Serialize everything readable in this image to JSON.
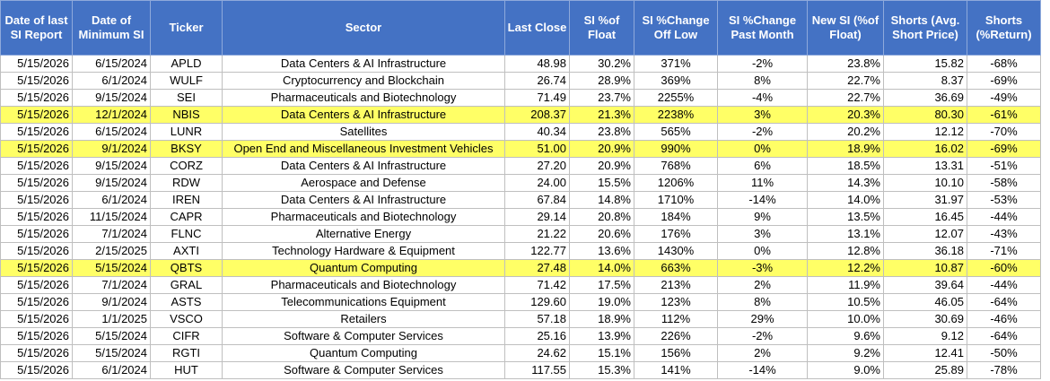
{
  "headers": [
    "Date of last SI Report",
    "Date of Minimum SI",
    "Ticker",
    "Sector",
    "Last Close",
    "SI %of Float",
    "SI %Change Off Low",
    "SI %Change Past Month",
    "New SI (%of Float)",
    "Shorts (Avg. Short Price)",
    "Shorts (%Return)"
  ],
  "highlight_color": "#ffff66",
  "header_color": "#4472c4",
  "rows": [
    {
      "report": "5/15/2026",
      "min": "6/15/2024",
      "ticker": "APLD",
      "sector": "Data Centers & AI Infrastructure",
      "close": "48.98",
      "si": "30.2%",
      "off_low": "371%",
      "past_month": "-2%",
      "new_si": "23.8%",
      "avg_price": "15.82",
      "ret": "-68%",
      "highlight": false
    },
    {
      "report": "5/15/2026",
      "min": "6/1/2024",
      "ticker": "WULF",
      "sector": "Cryptocurrency and Blockchain",
      "close": "26.74",
      "si": "28.9%",
      "off_low": "369%",
      "past_month": "8%",
      "new_si": "22.7%",
      "avg_price": "8.37",
      "ret": "-69%",
      "highlight": false
    },
    {
      "report": "5/15/2026",
      "min": "9/15/2024",
      "ticker": "SEI",
      "sector": "Pharmaceuticals and Biotechnology",
      "close": "71.49",
      "si": "23.7%",
      "off_low": "2255%",
      "past_month": "-4%",
      "new_si": "22.7%",
      "avg_price": "36.69",
      "ret": "-49%",
      "highlight": false
    },
    {
      "report": "5/15/2026",
      "min": "12/1/2024",
      "ticker": "NBIS",
      "sector": "Data Centers & AI Infrastructure",
      "close": "208.37",
      "si": "21.3%",
      "off_low": "2238%",
      "past_month": "3%",
      "new_si": "20.3%",
      "avg_price": "80.30",
      "ret": "-61%",
      "highlight": true
    },
    {
      "report": "5/15/2026",
      "min": "6/15/2024",
      "ticker": "LUNR",
      "sector": "Satellites",
      "close": "40.34",
      "si": "23.8%",
      "off_low": "565%",
      "past_month": "-2%",
      "new_si": "20.2%",
      "avg_price": "12.12",
      "ret": "-70%",
      "highlight": false
    },
    {
      "report": "5/15/2026",
      "min": "9/1/2024",
      "ticker": "BKSY",
      "sector": "Open End and Miscellaneous Investment Vehicles",
      "close": "51.00",
      "si": "20.9%",
      "off_low": "990%",
      "past_month": "0%",
      "new_si": "18.9%",
      "avg_price": "16.02",
      "ret": "-69%",
      "highlight": true
    },
    {
      "report": "5/15/2026",
      "min": "9/15/2024",
      "ticker": "CORZ",
      "sector": "Data Centers & AI Infrastructure",
      "close": "27.20",
      "si": "20.9%",
      "off_low": "768%",
      "past_month": "6%",
      "new_si": "18.5%",
      "avg_price": "13.31",
      "ret": "-51%",
      "highlight": false
    },
    {
      "report": "5/15/2026",
      "min": "9/15/2024",
      "ticker": "RDW",
      "sector": "Aerospace and Defense",
      "close": "24.00",
      "si": "15.5%",
      "off_low": "1206%",
      "past_month": "11%",
      "new_si": "14.3%",
      "avg_price": "10.10",
      "ret": "-58%",
      "highlight": false
    },
    {
      "report": "5/15/2026",
      "min": "6/1/2024",
      "ticker": "IREN",
      "sector": "Data Centers & AI Infrastructure",
      "close": "67.84",
      "si": "14.8%",
      "off_low": "1710%",
      "past_month": "-14%",
      "new_si": "14.0%",
      "avg_price": "31.97",
      "ret": "-53%",
      "highlight": false
    },
    {
      "report": "5/15/2026",
      "min": "11/15/2024",
      "ticker": "CAPR",
      "sector": "Pharmaceuticals and Biotechnology",
      "close": "29.14",
      "si": "20.8%",
      "off_low": "184%",
      "past_month": "9%",
      "new_si": "13.5%",
      "avg_price": "16.45",
      "ret": "-44%",
      "highlight": false
    },
    {
      "report": "5/15/2026",
      "min": "7/1/2024",
      "ticker": "FLNC",
      "sector": "Alternative Energy",
      "close": "21.22",
      "si": "20.6%",
      "off_low": "176%",
      "past_month": "3%",
      "new_si": "13.1%",
      "avg_price": "12.07",
      "ret": "-43%",
      "highlight": false
    },
    {
      "report": "5/15/2026",
      "min": "2/15/2025",
      "ticker": "AXTI",
      "sector": "Technology Hardware & Equipment",
      "close": "122.77",
      "si": "13.6%",
      "off_low": "1430%",
      "past_month": "0%",
      "new_si": "12.8%",
      "avg_price": "36.18",
      "ret": "-71%",
      "highlight": false
    },
    {
      "report": "5/15/2026",
      "min": "5/15/2024",
      "ticker": "QBTS",
      "sector": "Quantum Computing",
      "close": "27.48",
      "si": "14.0%",
      "off_low": "663%",
      "past_month": "-3%",
      "new_si": "12.2%",
      "avg_price": "10.87",
      "ret": "-60%",
      "highlight": true
    },
    {
      "report": "5/15/2026",
      "min": "7/1/2024",
      "ticker": "GRAL",
      "sector": "Pharmaceuticals and Biotechnology",
      "close": "71.42",
      "si": "17.5%",
      "off_low": "213%",
      "past_month": "2%",
      "new_si": "11.9%",
      "avg_price": "39.64",
      "ret": "-44%",
      "highlight": false
    },
    {
      "report": "5/15/2026",
      "min": "9/1/2024",
      "ticker": "ASTS",
      "sector": "Telecommunications Equipment",
      "close": "129.60",
      "si": "19.0%",
      "off_low": "123%",
      "past_month": "8%",
      "new_si": "10.5%",
      "avg_price": "46.05",
      "ret": "-64%",
      "highlight": false
    },
    {
      "report": "5/15/2026",
      "min": "1/1/2025",
      "ticker": "VSCO",
      "sector": "Retailers",
      "close": "57.18",
      "si": "18.9%",
      "off_low": "112%",
      "past_month": "29%",
      "new_si": "10.0%",
      "avg_price": "30.69",
      "ret": "-46%",
      "highlight": false
    },
    {
      "report": "5/15/2026",
      "min": "5/15/2024",
      "ticker": "CIFR",
      "sector": "Software & Computer Services",
      "close": "25.16",
      "si": "13.9%",
      "off_low": "226%",
      "past_month": "-2%",
      "new_si": "9.6%",
      "avg_price": "9.12",
      "ret": "-64%",
      "highlight": false
    },
    {
      "report": "5/15/2026",
      "min": "5/15/2024",
      "ticker": "RGTI",
      "sector": "Quantum Computing",
      "close": "24.62",
      "si": "15.1%",
      "off_low": "156%",
      "past_month": "2%",
      "new_si": "9.2%",
      "avg_price": "12.41",
      "ret": "-50%",
      "highlight": false
    },
    {
      "report": "5/15/2026",
      "min": "6/1/2024",
      "ticker": "HUT",
      "sector": "Software & Computer Services",
      "close": "117.55",
      "si": "15.3%",
      "off_low": "141%",
      "past_month": "-14%",
      "new_si": "9.0%",
      "avg_price": "25.89",
      "ret": "-78%",
      "highlight": false
    }
  ]
}
